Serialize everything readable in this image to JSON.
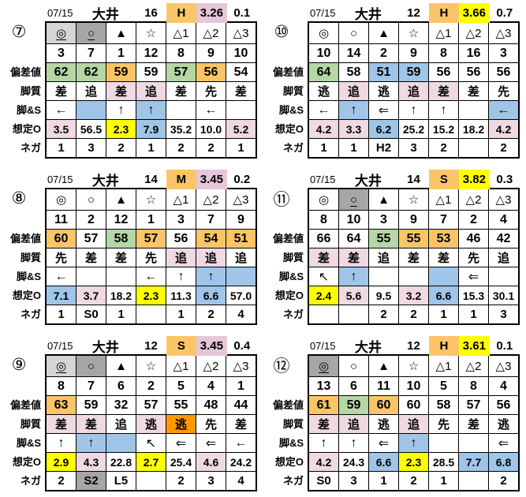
{
  "colors": {
    "lg": "#D5D5D5",
    "dg": "#A6A6A6",
    "gr": "#B4D7A5",
    "am": "#FBC567",
    "pk": "#EFD9E2",
    "hp": "#E6C6D9",
    "bl": "#9FC5E8",
    "yw": "#FFFF00",
    "or": "#FF9900"
  },
  "row_labels": {
    "dev": "偏差値",
    "style": "脚質",
    "legs": "脚&S",
    "odds": "想定O",
    "nega": "ネガ"
  },
  "blocks": [
    {
      "no": "⑦",
      "header": {
        "date": "07/15",
        "venue": "大井",
        "count": "16",
        "pace": {
          "t": "H",
          "bg": "am"
        },
        "time": {
          "t": "3.26",
          "bg": "hp"
        },
        "margin": "0.1"
      },
      "marks": [
        {
          "t": "◎",
          "bg": "lg",
          "u": 1
        },
        {
          "t": "○",
          "bg": "dg",
          "u": 1
        },
        {
          "t": "▲"
        },
        {
          "t": "☆"
        },
        {
          "t": "△1"
        },
        {
          "t": "△2"
        },
        {
          "t": "△3"
        }
      ],
      "nums": [
        "3",
        "7",
        "1",
        "12",
        "8",
        "9",
        "10"
      ],
      "dev": [
        {
          "t": "62",
          "bg": "gr"
        },
        {
          "t": "62",
          "bg": "gr"
        },
        {
          "t": "59",
          "bg": "am"
        },
        {
          "t": "59"
        },
        {
          "t": "57",
          "bg": "gr"
        },
        {
          "t": "56",
          "bg": "am"
        },
        {
          "t": "54"
        }
      ],
      "style": [
        {
          "t": "差"
        },
        {
          "t": "追"
        },
        {
          "t": "差",
          "bg": "pk"
        },
        {
          "t": "追",
          "bg": "pk"
        },
        {
          "t": "差"
        },
        {
          "t": "先"
        },
        {
          "t": "差"
        }
      ],
      "legs": [
        {
          "t": "←"
        },
        {
          "t": "",
          "bg": "bl"
        },
        {
          "t": "↑"
        },
        {
          "t": "↑",
          "bg": "bl"
        },
        {
          "t": ""
        },
        {
          "t": "←"
        },
        {
          "t": ""
        }
      ],
      "odds": [
        {
          "t": "3.5",
          "bg": "pk"
        },
        {
          "t": "56.5"
        },
        {
          "t": "2.3",
          "bg": "yw"
        },
        {
          "t": "7.9",
          "bg": "bl"
        },
        {
          "t": "35.2"
        },
        {
          "t": "10.0"
        },
        {
          "t": "5.2",
          "bg": "pk"
        }
      ],
      "nega": [
        {
          "t": "1"
        },
        {
          "t": "3"
        },
        {
          "t": "2"
        },
        {
          "t": "1"
        },
        {
          "t": "2"
        },
        {
          "t": "2"
        },
        {
          "t": "1"
        }
      ]
    },
    {
      "no": "⑩",
      "header": {
        "date": "07/15",
        "venue": "大井",
        "count": "12",
        "pace": {
          "t": "H",
          "bg": "am"
        },
        "time": {
          "t": "3.66",
          "bg": "yw"
        },
        "margin": "0.7"
      },
      "marks": [
        {
          "t": "◎"
        },
        {
          "t": "○"
        },
        {
          "t": "▲"
        },
        {
          "t": "☆"
        },
        {
          "t": "△1"
        },
        {
          "t": "△2"
        },
        {
          "t": "△3"
        }
      ],
      "nums": [
        "10",
        "14",
        "2",
        "9",
        "8",
        "16",
        "3"
      ],
      "dev": [
        {
          "t": "64",
          "bg": "gr"
        },
        {
          "t": "58"
        },
        {
          "t": "51",
          "bg": "bl"
        },
        {
          "t": "59",
          "bg": "bl"
        },
        {
          "t": "56"
        },
        {
          "t": "56"
        },
        {
          "t": "56"
        }
      ],
      "style": [
        {
          "t": "逃"
        },
        {
          "t": "追",
          "bg": "pk"
        },
        {
          "t": "逃"
        },
        {
          "t": "追",
          "bg": "pk"
        },
        {
          "t": "差",
          "bg": "pk"
        },
        {
          "t": "差"
        },
        {
          "t": "先"
        }
      ],
      "legs": [
        {
          "t": "←"
        },
        {
          "t": "↑",
          "bg": "bl"
        },
        {
          "t": "⇐"
        },
        {
          "t": "↑"
        },
        {
          "t": "↑"
        },
        {
          "t": ""
        },
        {
          "t": "←",
          "bg": "bl"
        }
      ],
      "odds": [
        {
          "t": "4.2",
          "bg": "pk"
        },
        {
          "t": "3.3",
          "bg": "pk"
        },
        {
          "t": "6.2",
          "bg": "bl"
        },
        {
          "t": "25.2"
        },
        {
          "t": "15.2"
        },
        {
          "t": "18.2"
        },
        {
          "t": "4.2",
          "bg": "pk"
        }
      ],
      "nega": [
        {
          "t": "1"
        },
        {
          "t": "1"
        },
        {
          "t": "H2"
        },
        {
          "t": "3"
        },
        {
          "t": "2"
        },
        {
          "t": ""
        },
        {
          "t": "2"
        }
      ]
    },
    {
      "no": "⑧",
      "header": {
        "date": "07/15",
        "venue": "大井",
        "count": "14",
        "pace": {
          "t": "M",
          "bg": "am"
        },
        "time": {
          "t": "3.45",
          "bg": "hp"
        },
        "margin": "0.2"
      },
      "marks": [
        {
          "t": "◎"
        },
        {
          "t": "○"
        },
        {
          "t": "▲"
        },
        {
          "t": "☆"
        },
        {
          "t": "△1"
        },
        {
          "t": "△2"
        },
        {
          "t": "△3"
        }
      ],
      "nums": [
        "11",
        "2",
        "12",
        "1",
        "3",
        "7",
        "9"
      ],
      "dev": [
        {
          "t": "60",
          "bg": "am"
        },
        {
          "t": "57"
        },
        {
          "t": "58",
          "bg": "gr"
        },
        {
          "t": "57",
          "bg": "am"
        },
        {
          "t": "56"
        },
        {
          "t": "54",
          "bg": "am"
        },
        {
          "t": "51",
          "bg": "am"
        }
      ],
      "style": [
        {
          "t": "先"
        },
        {
          "t": "差"
        },
        {
          "t": "差"
        },
        {
          "t": "先"
        },
        {
          "t": "追",
          "bg": "pk"
        },
        {
          "t": "追",
          "bg": "pk"
        },
        {
          "t": "追"
        }
      ],
      "legs": [
        {
          "t": "←"
        },
        {
          "t": ""
        },
        {
          "t": ""
        },
        {
          "t": "←"
        },
        {
          "t": "↑"
        },
        {
          "t": "↑",
          "bg": "bl"
        },
        {
          "t": "",
          "bg": "bl"
        }
      ],
      "odds": [
        {
          "t": "7.1",
          "bg": "bl"
        },
        {
          "t": "3.7",
          "bg": "pk"
        },
        {
          "t": "18.2"
        },
        {
          "t": "2.3",
          "bg": "yw"
        },
        {
          "t": "11.3"
        },
        {
          "t": "6.6",
          "bg": "bl"
        },
        {
          "t": "57.0"
        }
      ],
      "nega": [
        {
          "t": "1"
        },
        {
          "t": "S0"
        },
        {
          "t": "1"
        },
        {
          "t": ""
        },
        {
          "t": "1"
        },
        {
          "t": "2"
        },
        {
          "t": "4"
        }
      ]
    },
    {
      "no": "⑪",
      "header": {
        "date": "07/15",
        "venue": "大井",
        "count": "14",
        "pace": {
          "t": "S",
          "bg": "am"
        },
        "time": {
          "t": "3.82",
          "bg": "yw"
        },
        "margin": "0.3"
      },
      "marks": [
        {
          "t": "◎"
        },
        {
          "t": "○",
          "bg": "dg",
          "u": 1
        },
        {
          "t": "▲"
        },
        {
          "t": "☆"
        },
        {
          "t": "△1"
        },
        {
          "t": "△2"
        },
        {
          "t": "△3"
        }
      ],
      "nums": [
        "8",
        "10",
        "3",
        "9",
        "7",
        "2",
        "4"
      ],
      "dev": [
        {
          "t": "66"
        },
        {
          "t": "64"
        },
        {
          "t": "55",
          "bg": "gr"
        },
        {
          "t": "55",
          "bg": "am"
        },
        {
          "t": "53",
          "bg": "am"
        },
        {
          "t": "46"
        },
        {
          "t": "42"
        }
      ],
      "style": [
        {
          "t": "差",
          "bg": "pk"
        },
        {
          "t": "差",
          "bg": "pk"
        },
        {
          "t": "追"
        },
        {
          "t": "差"
        },
        {
          "t": "差"
        },
        {
          "t": "先"
        },
        {
          "t": "追"
        }
      ],
      "legs": [
        {
          "t": "↖"
        },
        {
          "t": "↑",
          "bg": "bl"
        },
        {
          "t": ""
        },
        {
          "t": ""
        },
        {
          "t": "",
          "bg": "bl"
        },
        {
          "t": "⇐"
        },
        {
          "t": ""
        }
      ],
      "odds": [
        {
          "t": "2.4",
          "bg": "yw"
        },
        {
          "t": "5.6",
          "bg": "pk"
        },
        {
          "t": "9.5"
        },
        {
          "t": "3.2",
          "bg": "pk"
        },
        {
          "t": "6.6",
          "bg": "bl"
        },
        {
          "t": "15.3"
        },
        {
          "t": "30.1"
        }
      ],
      "nega": [
        {
          "t": ""
        },
        {
          "t": ""
        },
        {
          "t": "2"
        },
        {
          "t": "2"
        },
        {
          "t": "1"
        },
        {
          "t": "1"
        },
        {
          "t": "3"
        }
      ]
    },
    {
      "no": "⑨",
      "header": {
        "date": "07/15",
        "venue": "大井",
        "count": "12",
        "pace": {
          "t": "S",
          "bg": "am"
        },
        "time": {
          "t": "3.45",
          "bg": "hp"
        },
        "margin": "0.4"
      },
      "marks": [
        {
          "t": "◎",
          "bg": "lg",
          "u": 1
        },
        {
          "t": "○",
          "bg": "dg"
        },
        {
          "t": "▲"
        },
        {
          "t": "☆"
        },
        {
          "t": "△1"
        },
        {
          "t": "△2"
        },
        {
          "t": "△3"
        }
      ],
      "nums": [
        "8",
        "7",
        "6",
        "2",
        "5",
        "4",
        "1"
      ],
      "dev": [
        {
          "t": "63",
          "bg": "am"
        },
        {
          "t": "59"
        },
        {
          "t": "32"
        },
        {
          "t": "57"
        },
        {
          "t": "55"
        },
        {
          "t": "48"
        },
        {
          "t": "44"
        }
      ],
      "style": [
        {
          "t": "差",
          "bg": "pk"
        },
        {
          "t": "差",
          "bg": "pk"
        },
        {
          "t": "追"
        },
        {
          "t": "逃",
          "bg": "pk"
        },
        {
          "t": "逃",
          "bg": "or"
        },
        {
          "t": "先"
        },
        {
          "t": "差"
        }
      ],
      "legs": [
        {
          "t": "↑"
        },
        {
          "t": "↑",
          "bg": "bl"
        },
        {
          "t": "",
          "bg": "bl"
        },
        {
          "t": "↖"
        },
        {
          "t": "⇐"
        },
        {
          "t": "⇐"
        },
        {
          "t": "←"
        }
      ],
      "odds": [
        {
          "t": "2.9",
          "bg": "yw"
        },
        {
          "t": "4.3",
          "bg": "pk"
        },
        {
          "t": "22.8"
        },
        {
          "t": "2.7",
          "bg": "yw"
        },
        {
          "t": "25.4"
        },
        {
          "t": "4.6",
          "bg": "pk"
        },
        {
          "t": "24.2"
        }
      ],
      "nega": [
        {
          "t": "2"
        },
        {
          "t": "S2",
          "bg": "dg"
        },
        {
          "t": "L5"
        },
        {
          "t": ""
        },
        {
          "t": "2"
        },
        {
          "t": "3"
        },
        {
          "t": "4"
        }
      ]
    },
    {
      "no": "⑫",
      "header": {
        "date": "07/15",
        "venue": "大井",
        "count": "12",
        "pace": {
          "t": "H",
          "bg": "am"
        },
        "time": {
          "t": "3.61",
          "bg": "yw"
        },
        "margin": "0.1"
      },
      "marks": [
        {
          "t": "◎",
          "bg": "dg",
          "u": 1
        },
        {
          "t": "○"
        },
        {
          "t": "▲"
        },
        {
          "t": "☆"
        },
        {
          "t": "△1"
        },
        {
          "t": "△2"
        },
        {
          "t": "△3"
        }
      ],
      "nums": [
        "13",
        "6",
        "11",
        "10",
        "5",
        "8",
        "4"
      ],
      "dev": [
        {
          "t": "61",
          "bg": "am"
        },
        {
          "t": "59",
          "bg": "gr"
        },
        {
          "t": "60",
          "bg": "am"
        },
        {
          "t": "60"
        },
        {
          "t": "58"
        },
        {
          "t": "57"
        },
        {
          "t": "56"
        }
      ],
      "style": [
        {
          "t": "差",
          "bg": "pk"
        },
        {
          "t": "追",
          "bg": "pk"
        },
        {
          "t": "逃"
        },
        {
          "t": "追",
          "bg": "pk"
        },
        {
          "t": "先"
        },
        {
          "t": "差"
        },
        {
          "t": "逃"
        }
      ],
      "legs": [
        {
          "t": "↑"
        },
        {
          "t": "↑"
        },
        {
          "t": "⇐"
        },
        {
          "t": "↑",
          "bg": "bl"
        },
        {
          "t": ""
        },
        {
          "t": ""
        },
        {
          "t": "⇐"
        }
      ],
      "odds": [
        {
          "t": "4.2",
          "bg": "pk"
        },
        {
          "t": "24.3"
        },
        {
          "t": "6.6",
          "bg": "bl"
        },
        {
          "t": "2.3",
          "bg": "yw"
        },
        {
          "t": "28.5"
        },
        {
          "t": "7.7",
          "bg": "bl"
        },
        {
          "t": "6.8",
          "bg": "bl"
        }
      ],
      "nega": [
        {
          "t": "S0"
        },
        {
          "t": "3"
        },
        {
          "t": "1"
        },
        {
          "t": "2"
        },
        {
          "t": "1"
        },
        {
          "t": ""
        },
        {
          "t": "2"
        }
      ]
    }
  ]
}
